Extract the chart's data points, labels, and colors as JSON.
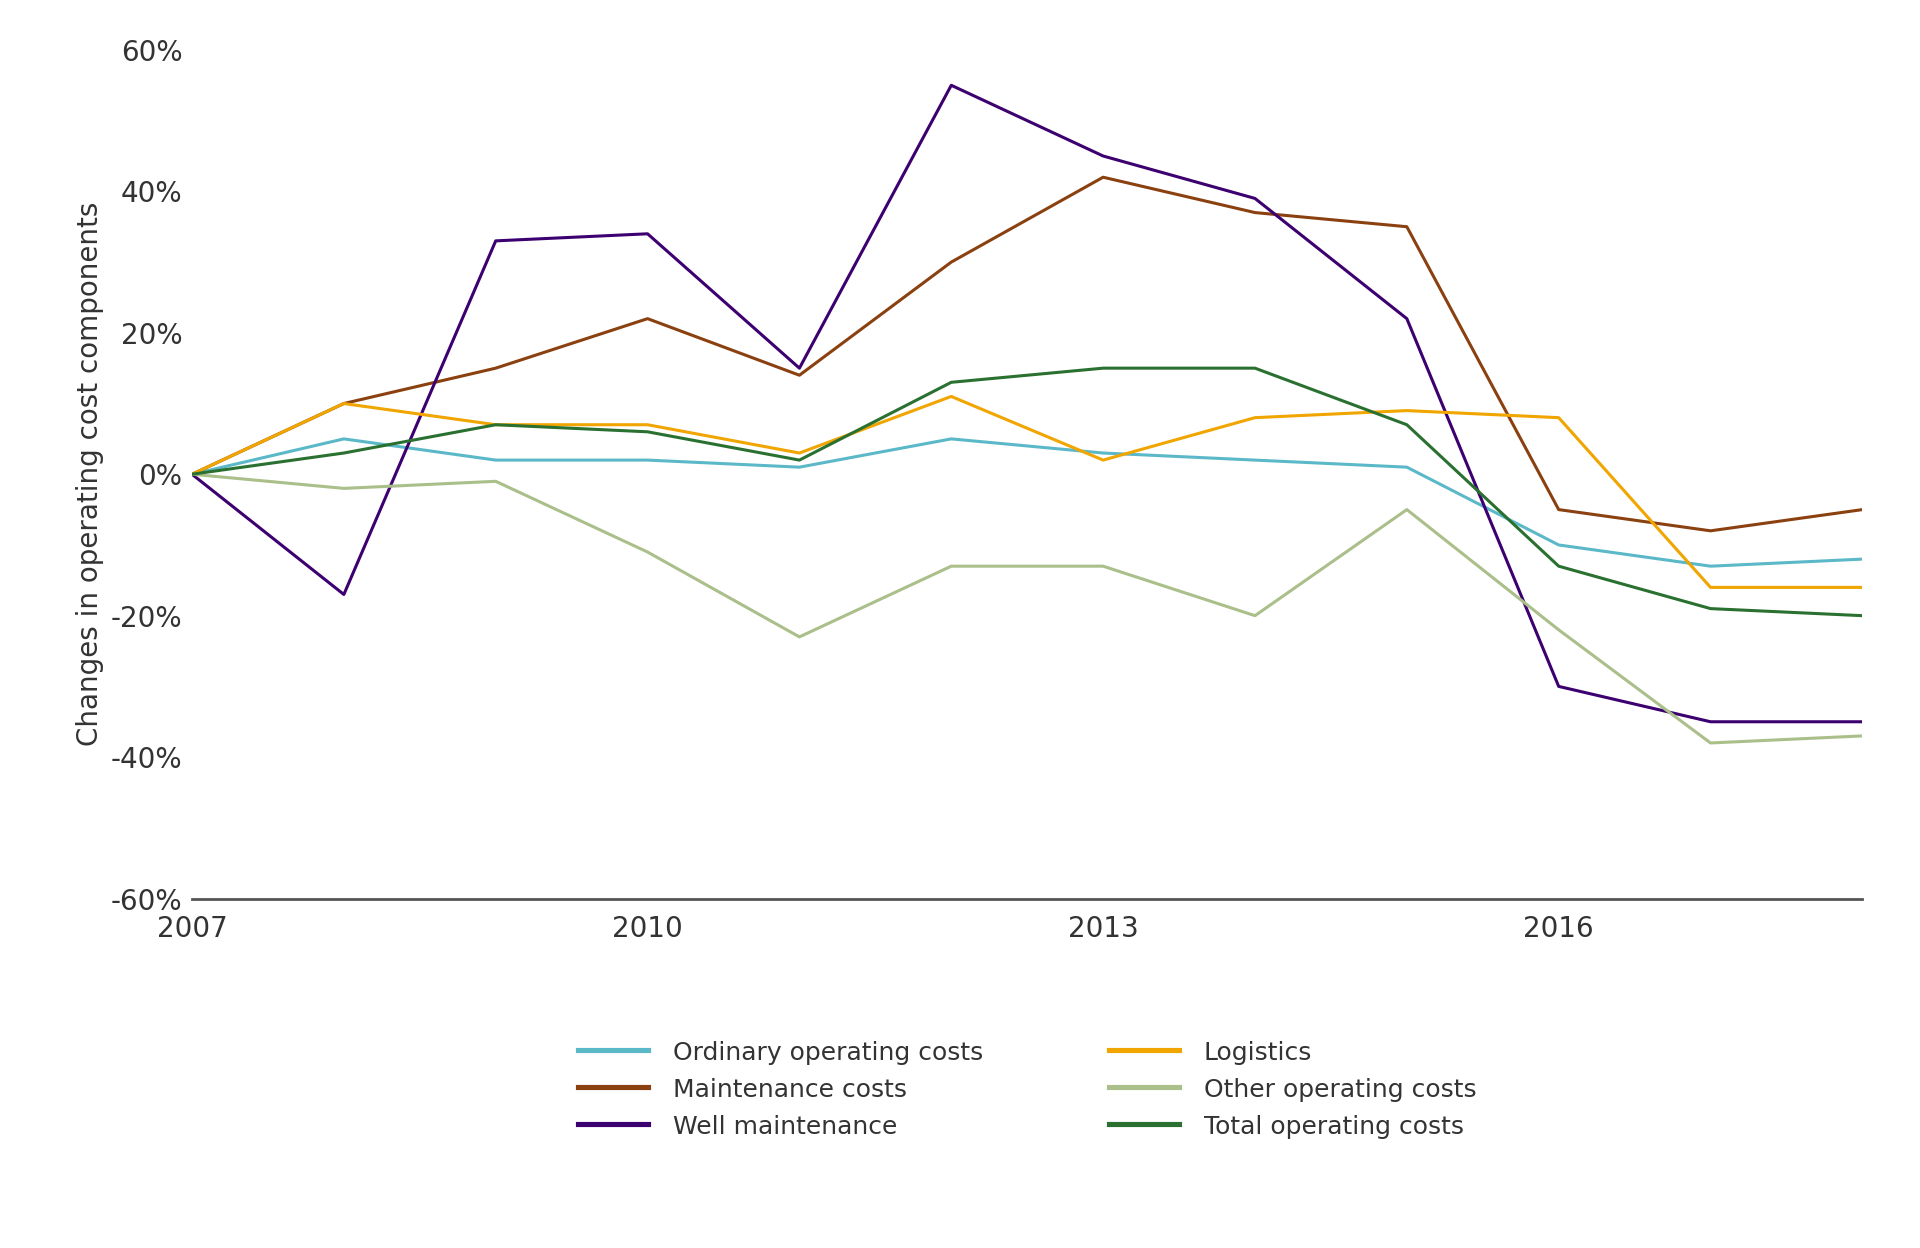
{
  "years": [
    2007,
    2008,
    2009,
    2010,
    2011,
    2012,
    2013,
    2014,
    2015,
    2016,
    2017,
    2018
  ],
  "series": {
    "Ordinary operating costs": {
      "values": [
        0,
        5,
        2,
        2,
        1,
        5,
        3,
        2,
        1,
        -10,
        -13,
        -12
      ],
      "color": "#5BB8C8",
      "linewidth": 2.2
    },
    "Maintenance costs": {
      "values": [
        0,
        10,
        15,
        22,
        14,
        30,
        42,
        37,
        35,
        -5,
        -8,
        -5
      ],
      "color": "#8B4010",
      "linewidth": 2.2
    },
    "Well maintenance": {
      "values": [
        0,
        -17,
        33,
        34,
        15,
        55,
        45,
        39,
        22,
        -30,
        -35,
        -35
      ],
      "color": "#3D0070",
      "linewidth": 2.2
    },
    "Logistics": {
      "values": [
        0,
        10,
        7,
        7,
        3,
        11,
        2,
        8,
        9,
        8,
        -16,
        -16
      ],
      "color": "#F0A500",
      "linewidth": 2.2
    },
    "Other operating costs": {
      "values": [
        0,
        -2,
        -1,
        -11,
        -23,
        -13,
        -13,
        -20,
        -5,
        -22,
        -38,
        -37
      ],
      "color": "#AABF8A",
      "linewidth": 2.2
    },
    "Total operating costs": {
      "values": [
        0,
        3,
        7,
        6,
        2,
        13,
        15,
        15,
        7,
        -13,
        -19,
        -20
      ],
      "color": "#2A7030",
      "linewidth": 2.2
    }
  },
  "ylabel": "Changes in operating cost components",
  "ylim": [
    -60,
    60
  ],
  "xlim": [
    2007,
    2018
  ],
  "xticks": [
    2007,
    2010,
    2013,
    2016
  ],
  "yticks": [
    -60,
    -40,
    -20,
    0,
    20,
    40,
    60
  ],
  "background_color": "#ffffff",
  "legend_col1": [
    "Ordinary operating costs",
    "Well maintenance",
    "Other operating costs"
  ],
  "legend_col2": [
    "Maintenance costs",
    "Logistics",
    "Total operating costs"
  ]
}
